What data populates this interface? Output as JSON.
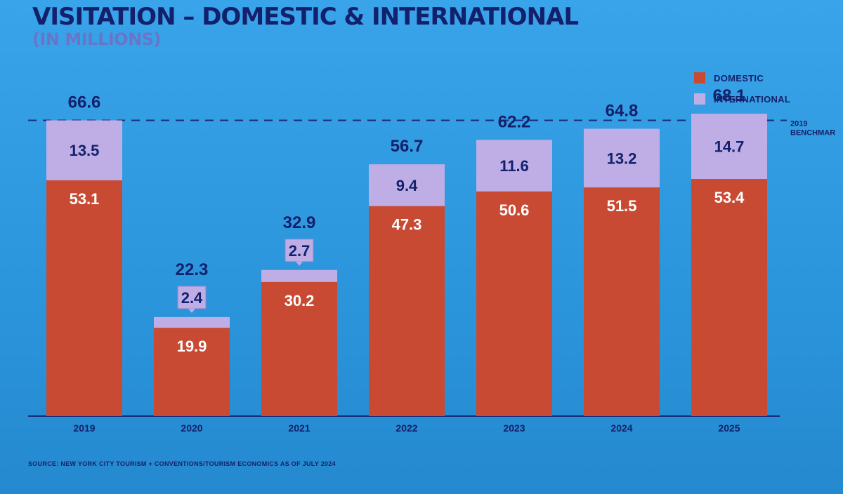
{
  "slide": {
    "title": "VISITATION – DOMESTIC & INTERNATIONAL",
    "subtitle": "(IN MILLIONS)",
    "source": "SOURCE: NEW YORK CITY TOURISM + CONVENTIONS/TOURISM ECONOMICS AS OF JULY 2024"
  },
  "colors": {
    "background": "#2f9be0",
    "domestic": "#c94a33",
    "international": "#bfaee6",
    "text": "#13206b"
  },
  "chart_data": {
    "type": "bar",
    "stacked": true,
    "title": "VISITATION – DOMESTIC & INTERNATIONAL",
    "subtitle": "(IN MILLIONS)",
    "categories": [
      "2019",
      "2020",
      "2021",
      "2022",
      "2023",
      "2024",
      "2025"
    ],
    "series": [
      {
        "name": "DOMESTIC",
        "color": "#c94a33",
        "values": [
          53.1,
          19.9,
          30.2,
          47.3,
          50.6,
          51.5,
          53.4
        ]
      },
      {
        "name": "INTERNATIONAL",
        "color": "#bfaee6",
        "values": [
          13.5,
          2.4,
          2.7,
          9.4,
          11.6,
          13.2,
          14.7
        ]
      }
    ],
    "totals": [
      "66.6",
      "22.3",
      "32.9",
      "56.7",
      "62.2",
      "64.8",
      "68.1"
    ],
    "domestic_labels": [
      "53.1",
      "19.9",
      "30.2",
      "47.3",
      "50.6",
      "51.5",
      "53.4"
    ],
    "international_labels": [
      "13.5",
      "2.4",
      "2.7",
      "9.4",
      "11.6",
      "13.2",
      "14.7"
    ],
    "benchmark": {
      "value": 66.6,
      "label_lines": [
        "2019",
        "BENCHMAR"
      ]
    },
    "legend": {
      "position": "top-right",
      "entries": [
        "DOMESTIC",
        "INTERNATIONAL"
      ]
    },
    "ylim": [
      0,
      70
    ],
    "grid": false
  }
}
